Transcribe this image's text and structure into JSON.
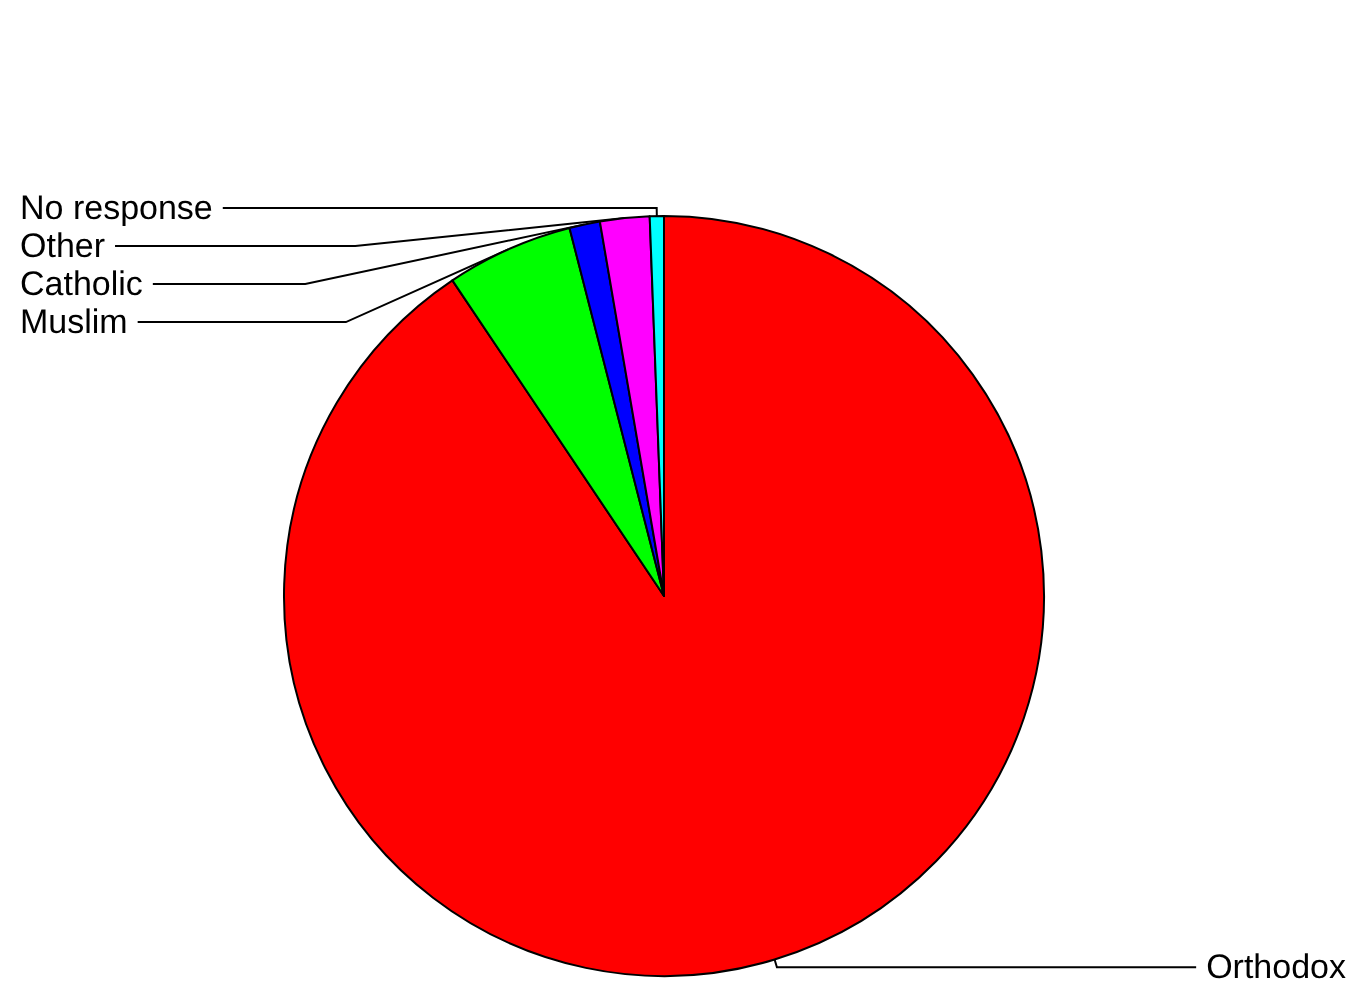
{
  "chart_data": {
    "type": "pie",
    "categories": [
      "Orthodox",
      "Muslim",
      "Catholic",
      "Other",
      "No response"
    ],
    "values": [
      90.6,
      5.4,
      1.3,
      2.1,
      0.6
    ],
    "colors": [
      "#ff0000",
      "#00ff00",
      "#0000ff",
      "#ff00ff",
      "#00ffff"
    ]
  }
}
